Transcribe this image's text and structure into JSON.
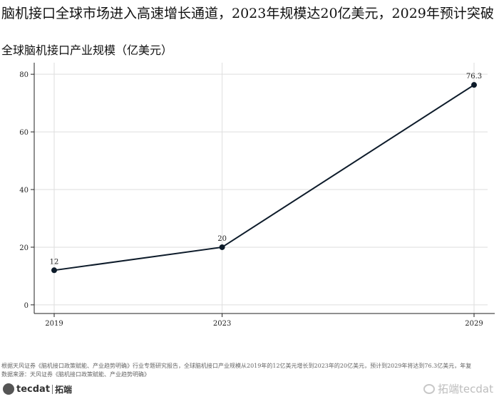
{
  "title": "脑机接口全球市场进入高速增长通道，2023年规模达20亿美元，2029年预计突破",
  "footnote": {
    "line1": "根据天风证券《脑机接口政策赋能、产业趋势明确》行业专题研究报告，全球脑机接口产业规模从2019年的12亿美元增长到2023年的20亿美元，预计到2029年将达到76.3亿美元，年复",
    "line2": "数据来源：天风证券《脑机接口政策赋能、产业趋势明确》"
  },
  "logo": {
    "text": "tecdat",
    "cn": "拓端"
  },
  "watermark": {
    "text": "拓端tecdat"
  },
  "colors": {
    "line": "#0d1b2a",
    "grid": "#dedede",
    "axis": "#222222"
  },
  "chart_data": {
    "type": "line",
    "title": "全球脑机接口产业规模（亿美元）",
    "xlabel": "",
    "ylabel": "",
    "x": [
      2019,
      2023,
      2029
    ],
    "values": [
      12,
      20,
      76.3
    ],
    "value_labels": [
      "12",
      "20",
      "76.3"
    ],
    "xticks": [
      "2019",
      "2023",
      "2029"
    ],
    "yticks": [
      0,
      20,
      40,
      60,
      80
    ],
    "ylim": [
      -3,
      84
    ],
    "grid": true,
    "legend": "none"
  }
}
